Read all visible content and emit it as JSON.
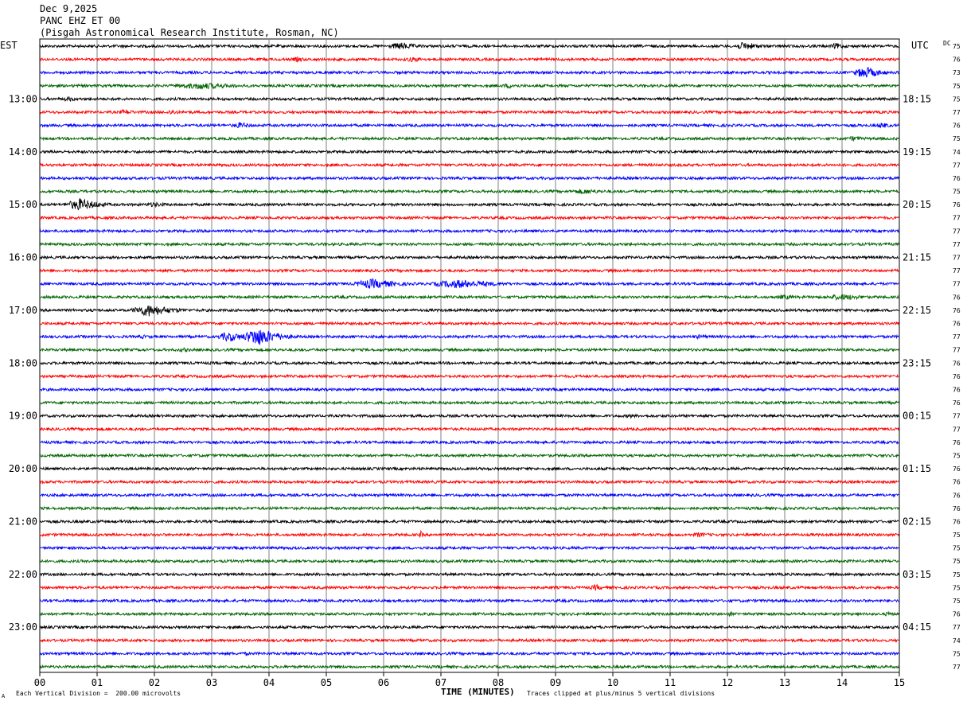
{
  "header": {
    "date": "Dec 9,2025",
    "station": "PANC EHZ ET 00",
    "location": "(Pisgah Astronomical Research Institute, Rosman, NC)"
  },
  "left_timezone": "EST",
  "right_timezone": "UTC",
  "dc_label": "DC",
  "footer": {
    "division_note": "Each Vertical Division =  200.00 microvolts",
    "xlabel": "TIME (MINUTES)",
    "clip_note": "Traces clipped at plus/minus 5 vertical divisions",
    "corner_mark": "A"
  },
  "colors": {
    "trace_cycle": [
      "#000000",
      "#ff0000",
      "#0000ff",
      "#006400"
    ],
    "grid": "#808080"
  },
  "chart_data": {
    "type": "line",
    "title": "PANC EHZ ET 00",
    "xlabel": "TIME (MINUTES)",
    "xlim": [
      0,
      15
    ],
    "x_ticks": [
      "00",
      "01",
      "02",
      "03",
      "04",
      "05",
      "06",
      "07",
      "08",
      "09",
      "10",
      "11",
      "12",
      "13",
      "14",
      "15"
    ],
    "rows": 48,
    "minutes_per_row": 15,
    "left_hour_labels": [
      {
        "row": 4,
        "label": "13:00"
      },
      {
        "row": 8,
        "label": "14:00"
      },
      {
        "row": 12,
        "label": "15:00"
      },
      {
        "row": 16,
        "label": "16:00"
      },
      {
        "row": 20,
        "label": "17:00"
      },
      {
        "row": 24,
        "label": "18:00"
      },
      {
        "row": 28,
        "label": "19:00"
      },
      {
        "row": 32,
        "label": "20:00"
      },
      {
        "row": 36,
        "label": "21:00"
      },
      {
        "row": 40,
        "label": "22:00"
      },
      {
        "row": 44,
        "label": "23:00"
      }
    ],
    "right_hour_labels": [
      {
        "row": 4,
        "label": "18:15"
      },
      {
        "row": 8,
        "label": "19:15"
      },
      {
        "row": 12,
        "label": "20:15"
      },
      {
        "row": 16,
        "label": "21:15"
      },
      {
        "row": 20,
        "label": "22:15"
      },
      {
        "row": 24,
        "label": "23:15"
      },
      {
        "row": 28,
        "label": "00:15"
      },
      {
        "row": 32,
        "label": "01:15"
      },
      {
        "row": 36,
        "label": "02:15"
      },
      {
        "row": 40,
        "label": "03:15"
      },
      {
        "row": 44,
        "label": "04:15"
      }
    ],
    "dc_offsets": [
      75,
      76,
      73,
      75,
      75,
      77,
      76,
      75,
      74,
      77,
      76,
      75,
      76,
      77,
      77,
      77,
      77,
      77,
      77,
      76,
      76,
      76,
      77,
      77,
      76,
      76,
      76,
      76,
      77,
      77,
      76,
      75,
      76,
      76,
      76,
      76,
      76,
      75,
      75,
      75,
      75,
      75,
      75,
      76,
      77,
      74,
      75,
      77
    ],
    "events": [
      {
        "row": 0,
        "minute": 6.3,
        "amplitude": 1.6,
        "duration": 0.6
      },
      {
        "row": 0,
        "minute": 12.3,
        "amplitude": 1.8,
        "duration": 0.5
      },
      {
        "row": 0,
        "minute": 13.9,
        "amplitude": 1.4,
        "duration": 0.3
      },
      {
        "row": 1,
        "minute": 4.5,
        "amplitude": 1.2,
        "duration": 0.3
      },
      {
        "row": 1,
        "minute": 6.5,
        "amplitude": 1.1,
        "duration": 0.6
      },
      {
        "row": 2,
        "minute": 14.4,
        "amplitude": 2.6,
        "duration": 0.5
      },
      {
        "row": 3,
        "minute": 2.8,
        "amplitude": 1.5,
        "duration": 1.2
      },
      {
        "row": 3,
        "minute": 8.2,
        "amplitude": 1.1,
        "duration": 0.5
      },
      {
        "row": 4,
        "minute": 0.5,
        "amplitude": 1.1,
        "duration": 0.4
      },
      {
        "row": 5,
        "minute": 1.5,
        "amplitude": 1.2,
        "duration": 0.4
      },
      {
        "row": 5,
        "minute": 2.3,
        "amplitude": 1.2,
        "duration": 0.3
      },
      {
        "row": 6,
        "minute": 3.5,
        "amplitude": 1.3,
        "duration": 0.5
      },
      {
        "row": 6,
        "minute": 14.7,
        "amplitude": 1.3,
        "duration": 0.3
      },
      {
        "row": 7,
        "minute": 14.2,
        "amplitude": 1.1,
        "duration": 0.4
      },
      {
        "row": 11,
        "minute": 9.5,
        "amplitude": 1.2,
        "duration": 0.8
      },
      {
        "row": 12,
        "minute": 0.7,
        "amplitude": 2.6,
        "duration": 0.6
      },
      {
        "row": 12,
        "minute": 2.0,
        "amplitude": 1.1,
        "duration": 0.6
      },
      {
        "row": 18,
        "minute": 5.8,
        "amplitude": 2.2,
        "duration": 0.8
      },
      {
        "row": 18,
        "minute": 7.3,
        "amplitude": 1.9,
        "duration": 1.2
      },
      {
        "row": 19,
        "minute": 14.0,
        "amplitude": 1.4,
        "duration": 0.8
      },
      {
        "row": 19,
        "minute": 13.0,
        "amplitude": 1.1,
        "duration": 0.5
      },
      {
        "row": 20,
        "minute": 1.9,
        "amplitude": 2.7,
        "duration": 0.7
      },
      {
        "row": 22,
        "minute": 3.8,
        "amplitude": 4.0,
        "duration": 0.6
      },
      {
        "row": 22,
        "minute": 3.3,
        "amplitude": 2.2,
        "duration": 0.5
      },
      {
        "row": 22,
        "minute": 1.8,
        "amplitude": 0.9,
        "duration": 0.3
      },
      {
        "row": 22,
        "minute": 11.5,
        "amplitude": 0.9,
        "duration": 0.6
      },
      {
        "row": 23,
        "minute": 2.5,
        "amplitude": 1.0,
        "duration": 0.4
      },
      {
        "row": 28,
        "minute": 10.3,
        "amplitude": 1.0,
        "duration": 0.3
      },
      {
        "row": 37,
        "minute": 6.65,
        "amplitude": 1.6,
        "duration": 0.08
      },
      {
        "row": 37,
        "minute": 11.5,
        "amplitude": 1.2,
        "duration": 0.3
      },
      {
        "row": 41,
        "minute": 9.7,
        "amplitude": 1.4,
        "duration": 0.25
      },
      {
        "row": 43,
        "minute": 12.05,
        "amplitude": 1.1,
        "duration": 0.15
      },
      {
        "row": 43,
        "minute": 14.8,
        "amplitude": 1.0,
        "duration": 0.3
      },
      {
        "row": 46,
        "minute": 3.6,
        "amplitude": 1.0,
        "duration": 0.1
      }
    ]
  }
}
